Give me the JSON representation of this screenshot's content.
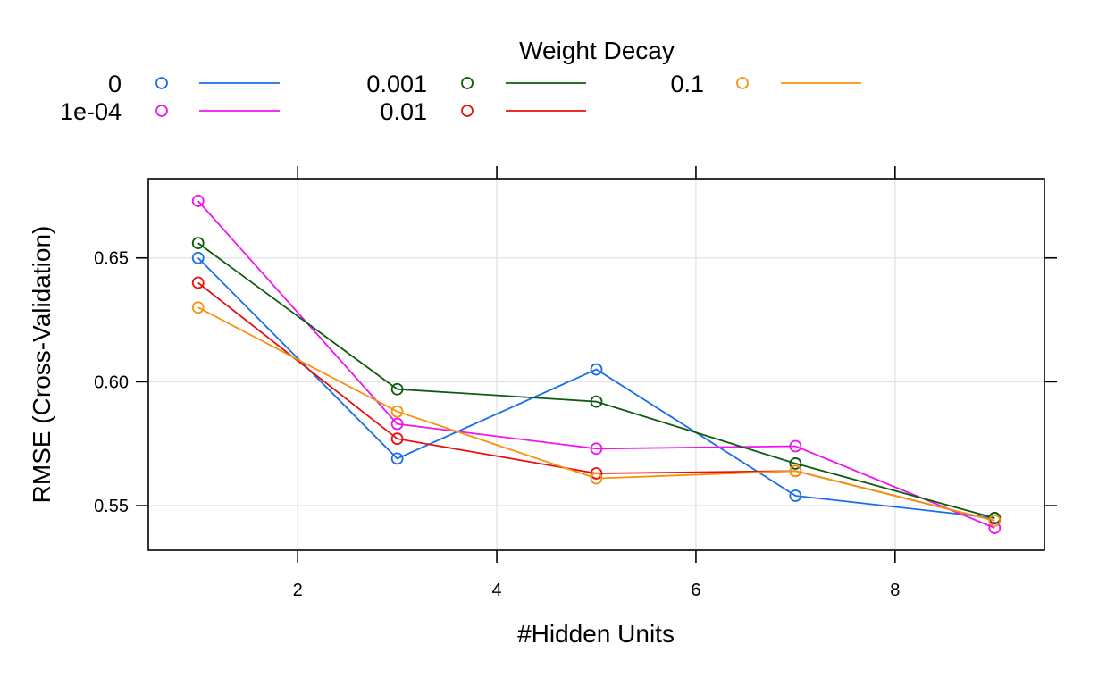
{
  "chart_data": {
    "type": "line",
    "title": "",
    "xlabel": "#Hidden Units",
    "ylabel": "RMSE (Cross-Validation)",
    "legend_title": "Weight Decay",
    "legend_position": "top",
    "grid": true,
    "xlim": [
      0.5,
      9.5
    ],
    "ylim": [
      0.532,
      0.682
    ],
    "xticks": [
      2,
      4,
      6,
      8
    ],
    "xtick_labels": [
      "2",
      "4",
      "6",
      "8"
    ],
    "yticks": [
      0.55,
      0.6,
      0.65
    ],
    "ytick_labels": [
      "0.55",
      "0.60",
      "0.65"
    ],
    "x": [
      1,
      3,
      5,
      7,
      9
    ],
    "series": [
      {
        "name": "0",
        "color": "#1a6ee8",
        "values": [
          0.65,
          0.569,
          0.605,
          0.554,
          0.545
        ]
      },
      {
        "name": "1e-04",
        "color": "#f014f0",
        "values": [
          0.673,
          0.583,
          0.573,
          0.574,
          0.541
        ]
      },
      {
        "name": "0.001",
        "color": "#0e5a0e",
        "values": [
          0.656,
          0.597,
          0.592,
          0.567,
          0.545
        ]
      },
      {
        "name": "0.01",
        "color": "#e81010",
        "values": [
          0.64,
          0.577,
          0.563,
          0.564,
          0.544
        ]
      },
      {
        "name": "0.1",
        "color": "#f5920f",
        "values": [
          0.63,
          0.588,
          0.561,
          0.564,
          0.544
        ]
      }
    ]
  }
}
